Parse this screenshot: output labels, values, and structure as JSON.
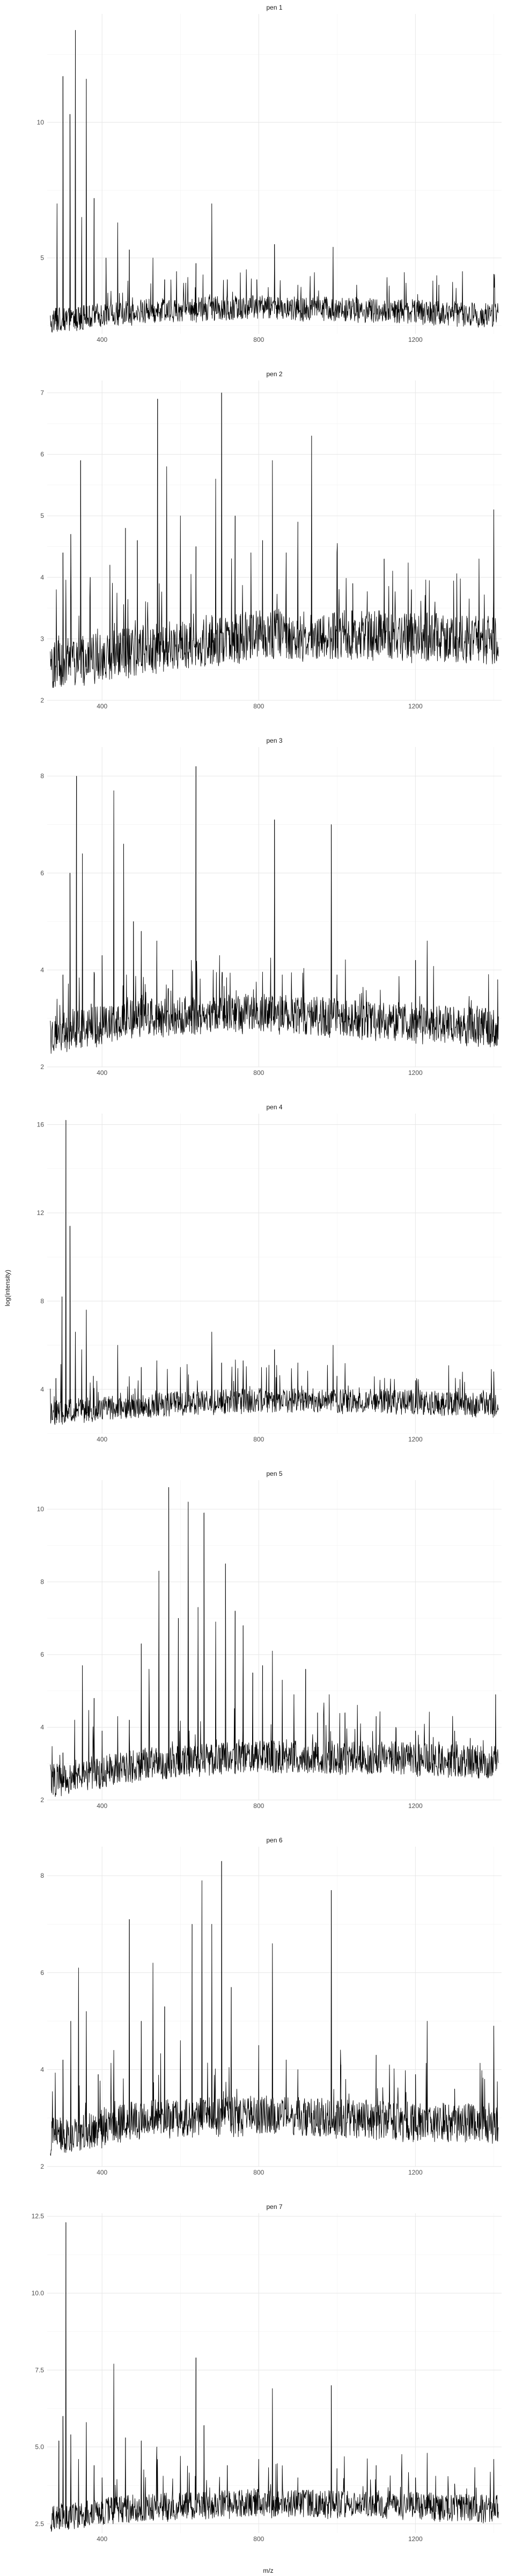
{
  "chart_data": {
    "type": "line",
    "facet_layout": "single column, 7 panels, free y scales, shared x axis",
    "xlabel": "m/z",
    "ylabel": "log(intensity)",
    "xlim": [
      260,
      1420
    ],
    "x_ticks": [
      400,
      800,
      1200
    ],
    "x_tick_labels": [
      "400",
      "800",
      "1200"
    ],
    "series_color": "#000000",
    "grid": "on",
    "legend": "none",
    "panels": [
      {
        "name": "pen 1",
        "ylim": [
          2.2,
          14.0
        ],
        "y_ticks": [
          5,
          10
        ],
        "y_tick_labels": [
          "5",
          "10"
        ],
        "baseline": [
          [
            270,
            2.55
          ],
          [
            500,
            2.9
          ],
          [
            800,
            3.05
          ],
          [
            1100,
            2.95
          ],
          [
            1400,
            2.75
          ]
        ],
        "noise_amp": 0.45,
        "peaks": [
          [
            285,
            7.0
          ],
          [
            300,
            11.7
          ],
          [
            318,
            10.3
          ],
          [
            332,
            13.4
          ],
          [
            348,
            6.5
          ],
          [
            360,
            11.6
          ],
          [
            380,
            7.2
          ],
          [
            410,
            5.0
          ],
          [
            440,
            6.3
          ],
          [
            470,
            5.3
          ],
          [
            530,
            5.0
          ],
          [
            560,
            4.2
          ],
          [
            590,
            4.5
          ],
          [
            640,
            4.8
          ],
          [
            680,
            7.0
          ],
          [
            720,
            4.2
          ],
          [
            795,
            4.2
          ],
          [
            840,
            5.5
          ],
          [
            900,
            4.0
          ],
          [
            990,
            5.4
          ],
          [
            1050,
            4.0
          ],
          [
            1260,
            4.0
          ],
          [
            1320,
            4.5
          ],
          [
            1400,
            4.4
          ]
        ]
      },
      {
        "name": "pen 2",
        "ylim": [
          2.0,
          7.2
        ],
        "y_ticks": [
          2,
          3,
          4,
          5,
          6,
          7
        ],
        "y_tick_labels": [
          "2",
          "3",
          "4",
          "5",
          "6",
          "7"
        ],
        "baseline": [
          [
            270,
            2.45
          ],
          [
            500,
            2.7
          ],
          [
            800,
            2.95
          ],
          [
            1100,
            2.95
          ],
          [
            1400,
            2.85
          ]
        ],
        "noise_amp": 0.4,
        "peaks": [
          [
            300,
            4.4
          ],
          [
            320,
            4.7
          ],
          [
            345,
            5.9
          ],
          [
            370,
            4.0
          ],
          [
            420,
            4.2
          ],
          [
            460,
            4.8
          ],
          [
            490,
            4.6
          ],
          [
            542,
            6.9
          ],
          [
            565,
            5.8
          ],
          [
            600,
            5.0
          ],
          [
            640,
            4.5
          ],
          [
            690,
            5.6
          ],
          [
            705,
            7.0
          ],
          [
            740,
            5.0
          ],
          [
            780,
            4.4
          ],
          [
            810,
            4.6
          ],
          [
            835,
            5.9
          ],
          [
            870,
            4.4
          ],
          [
            900,
            4.9
          ],
          [
            935,
            6.3
          ],
          [
            1000,
            4.4
          ],
          [
            1040,
            3.9
          ],
          [
            1120,
            4.3
          ],
          [
            1190,
            3.8
          ],
          [
            1250,
            3.6
          ],
          [
            1360,
            3.0
          ],
          [
            1400,
            5.1
          ]
        ]
      },
      {
        "name": "pen 3",
        "ylim": [
          2.0,
          8.6
        ],
        "y_ticks": [
          2,
          4,
          6,
          8
        ],
        "y_tick_labels": [
          "2",
          "4",
          "6",
          "8"
        ],
        "baseline": [
          [
            270,
            2.55
          ],
          [
            500,
            2.9
          ],
          [
            800,
            3.0
          ],
          [
            1100,
            2.85
          ],
          [
            1400,
            2.7
          ]
        ],
        "noise_amp": 0.4,
        "peaks": [
          [
            285,
            3.4
          ],
          [
            300,
            3.9
          ],
          [
            318,
            6.0
          ],
          [
            335,
            8.0
          ],
          [
            350,
            6.4
          ],
          [
            372,
            3.3
          ],
          [
            400,
            4.3
          ],
          [
            430,
            7.7
          ],
          [
            455,
            6.6
          ],
          [
            480,
            5.0
          ],
          [
            500,
            4.8
          ],
          [
            540,
            4.6
          ],
          [
            580,
            4.0
          ],
          [
            628,
            4.2
          ],
          [
            640,
            8.2
          ],
          [
            700,
            4.3
          ],
          [
            740,
            3.3
          ],
          [
            840,
            7.1
          ],
          [
            860,
            3.9
          ],
          [
            900,
            3.2
          ],
          [
            985,
            7.0
          ],
          [
            1000,
            3.9
          ],
          [
            1200,
            4.2
          ],
          [
            1230,
            4.6
          ],
          [
            1410,
            3.8
          ]
        ]
      },
      {
        "name": "pen 4",
        "ylim": [
          2.0,
          16.5
        ],
        "y_ticks": [
          4,
          8,
          12,
          16
        ],
        "y_tick_labels": [
          "4",
          "8",
          "12",
          "16"
        ],
        "baseline": [
          [
            270,
            2.8
          ],
          [
            500,
            3.1
          ],
          [
            800,
            3.35
          ],
          [
            1100,
            3.3
          ],
          [
            1400,
            3.15
          ]
        ],
        "noise_amp": 0.55,
        "peaks": [
          [
            282,
            4.5
          ],
          [
            298,
            8.2
          ],
          [
            308,
            16.2
          ],
          [
            318,
            11.4
          ],
          [
            332,
            6.6
          ],
          [
            348,
            5.8
          ],
          [
            360,
            7.6
          ],
          [
            378,
            4.6
          ],
          [
            440,
            6.0
          ],
          [
            500,
            5.0
          ],
          [
            540,
            5.3
          ],
          [
            600,
            5.0
          ],
          [
            680,
            6.6
          ],
          [
            705,
            5.2
          ],
          [
            760,
            5.3
          ],
          [
            840,
            5.8
          ],
          [
            900,
            5.2
          ],
          [
            990,
            6.0
          ],
          [
            1000,
            4.6
          ],
          [
            1200,
            4.4
          ],
          [
            1400,
            4.8
          ]
        ]
      },
      {
        "name": "pen 5",
        "ylim": [
          2.0,
          10.8
        ],
        "y_ticks": [
          2,
          4,
          6,
          8,
          10
        ],
        "y_tick_labels": [
          "2",
          "4",
          "6",
          "8",
          "10"
        ],
        "baseline": [
          [
            270,
            2.4
          ],
          [
            500,
            2.85
          ],
          [
            800,
            3.05
          ],
          [
            1100,
            3.05
          ],
          [
            1400,
            2.9
          ]
        ],
        "noise_amp": 0.45,
        "peaks": [
          [
            300,
            3.3
          ],
          [
            330,
            4.2
          ],
          [
            350,
            5.7
          ],
          [
            380,
            4.8
          ],
          [
            400,
            3.9
          ],
          [
            440,
            4.3
          ],
          [
            470,
            4.2
          ],
          [
            500,
            6.3
          ],
          [
            520,
            5.6
          ],
          [
            545,
            8.3
          ],
          [
            570,
            10.6
          ],
          [
            595,
            7.0
          ],
          [
            620,
            10.2
          ],
          [
            645,
            7.3
          ],
          [
            660,
            9.9
          ],
          [
            690,
            6.9
          ],
          [
            715,
            8.5
          ],
          [
            740,
            7.2
          ],
          [
            760,
            6.8
          ],
          [
            785,
            5.5
          ],
          [
            810,
            5.7
          ],
          [
            835,
            6.1
          ],
          [
            860,
            5.3
          ],
          [
            890,
            4.9
          ],
          [
            920,
            5.6
          ],
          [
            950,
            4.4
          ],
          [
            980,
            4.9
          ],
          [
            1020,
            4.4
          ],
          [
            1060,
            4.1
          ],
          [
            1100,
            4.3
          ],
          [
            1150,
            4.0
          ],
          [
            1200,
            3.9
          ],
          [
            1260,
            3.6
          ],
          [
            1300,
            3.9
          ],
          [
            1340,
            3.7
          ],
          [
            1405,
            4.9
          ]
        ]
      },
      {
        "name": "pen 6",
        "ylim": [
          2.0,
          8.6
        ],
        "y_ticks": [
          2,
          4,
          6,
          8
        ],
        "y_tick_labels": [
          "2",
          "4",
          "6",
          "8"
        ],
        "baseline": [
          [
            270,
            2.5
          ],
          [
            500,
            2.85
          ],
          [
            800,
            2.95
          ],
          [
            1100,
            2.85
          ],
          [
            1400,
            2.75
          ]
        ],
        "noise_amp": 0.4,
        "peaks": [
          [
            300,
            4.2
          ],
          [
            320,
            5.0
          ],
          [
            340,
            6.1
          ],
          [
            360,
            5.2
          ],
          [
            390,
            3.9
          ],
          [
            430,
            4.4
          ],
          [
            470,
            7.1
          ],
          [
            500,
            5.0
          ],
          [
            530,
            6.2
          ],
          [
            560,
            5.3
          ],
          [
            600,
            4.6
          ],
          [
            630,
            7.0
          ],
          [
            655,
            7.9
          ],
          [
            680,
            7.0
          ],
          [
            705,
            8.3
          ],
          [
            730,
            5.7
          ],
          [
            800,
            4.5
          ],
          [
            835,
            6.6
          ],
          [
            870,
            4.2
          ],
          [
            900,
            4.0
          ],
          [
            985,
            7.7
          ],
          [
            1010,
            4.1
          ],
          [
            1100,
            4.3
          ],
          [
            1200,
            3.9
          ],
          [
            1230,
            5.0
          ],
          [
            1300,
            3.6
          ],
          [
            1400,
            4.9
          ]
        ]
      },
      {
        "name": "pen 7",
        "ylim": [
          2.2,
          12.6
        ],
        "y_ticks": [
          2.5,
          5.0,
          7.5,
          10.0,
          12.5
        ],
        "y_tick_labels": [
          "2.5",
          "5.0",
          "7.5",
          "10.0",
          "12.5"
        ],
        "baseline": [
          [
            270,
            2.55
          ],
          [
            500,
            2.9
          ],
          [
            800,
            3.05
          ],
          [
            1100,
            3.0
          ],
          [
            1400,
            2.85
          ]
        ],
        "noise_amp": 0.45,
        "peaks": [
          [
            290,
            5.2
          ],
          [
            300,
            6.0
          ],
          [
            308,
            12.3
          ],
          [
            320,
            5.4
          ],
          [
            340,
            4.6
          ],
          [
            360,
            5.8
          ],
          [
            380,
            4.4
          ],
          [
            400,
            4.0
          ],
          [
            430,
            7.7
          ],
          [
            460,
            5.3
          ],
          [
            500,
            5.2
          ],
          [
            540,
            5.0
          ],
          [
            600,
            4.7
          ],
          [
            640,
            7.9
          ],
          [
            660,
            5.7
          ],
          [
            720,
            4.4
          ],
          [
            800,
            4.6
          ],
          [
            835,
            6.9
          ],
          [
            860,
            4.3
          ],
          [
            900,
            4.0
          ],
          [
            985,
            7.0
          ],
          [
            1000,
            4.3
          ],
          [
            1100,
            4.4
          ],
          [
            1200,
            4.0
          ],
          [
            1230,
            4.8
          ],
          [
            1300,
            3.8
          ],
          [
            1400,
            4.6
          ]
        ]
      }
    ]
  }
}
